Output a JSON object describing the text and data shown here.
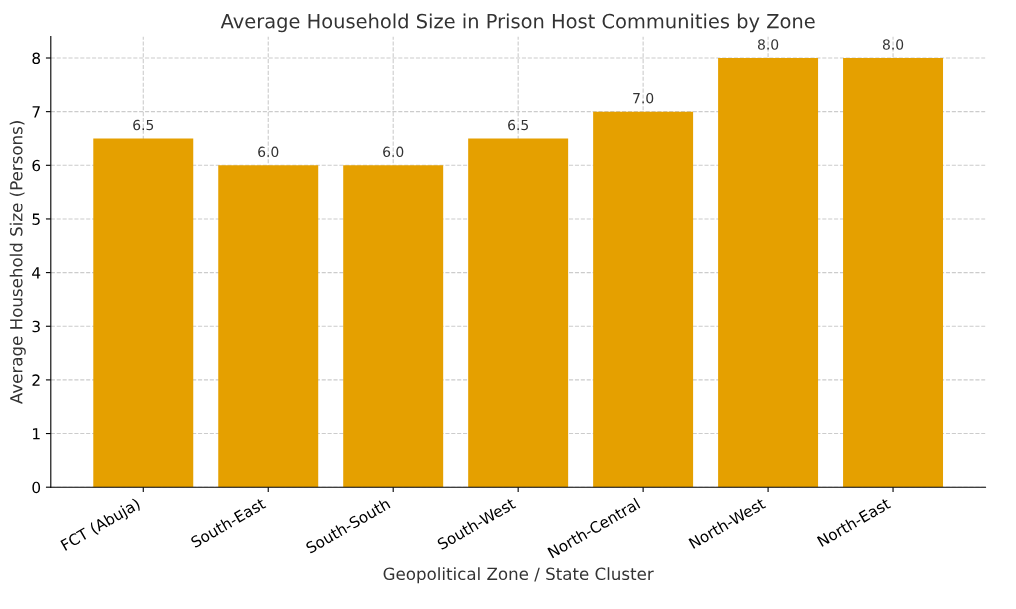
{
  "chart_data": {
    "type": "bar",
    "title": "Average Household Size in Prison Host Communities by Zone",
    "xlabel": "Geopolitical Zone / State Cluster",
    "ylabel": "Average Household Size (Persons)",
    "categories": [
      "FCT (Abuja)",
      "South-East",
      "South-South",
      "South-West",
      "North-Central",
      "North-West",
      "North-East"
    ],
    "values": [
      6.5,
      6.0,
      6.0,
      6.5,
      7.0,
      8.0,
      8.0
    ],
    "value_labels": [
      "6.5",
      "6.0",
      "6.0",
      "6.5",
      "7.0",
      "8.0",
      "8.0"
    ],
    "color": "#e5a000",
    "ylim": [
      0,
      8.4
    ],
    "yticks": [
      0,
      1,
      2,
      3,
      4,
      5,
      6,
      7,
      8
    ],
    "grid": true
  }
}
